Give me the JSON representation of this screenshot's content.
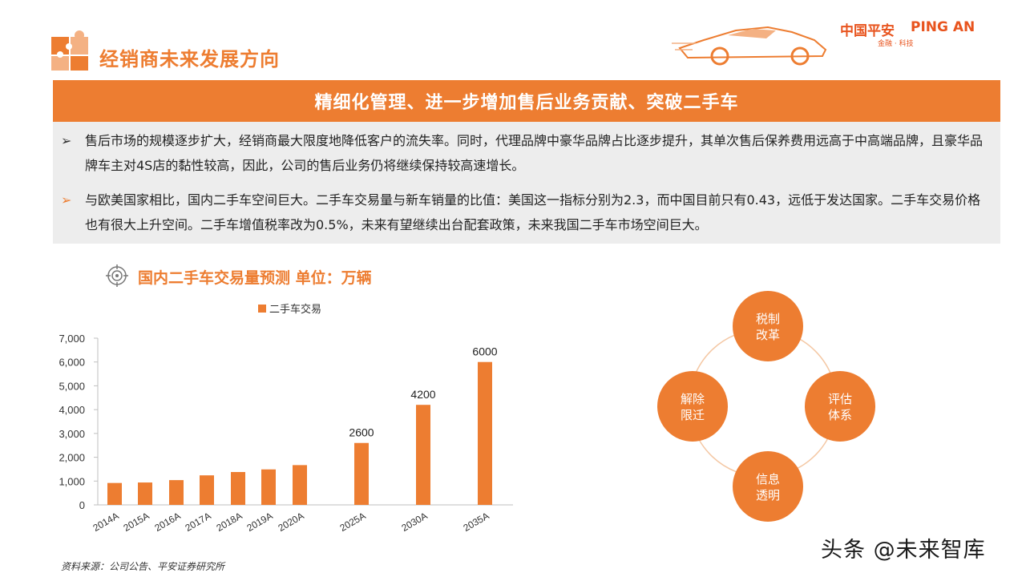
{
  "header": {
    "title": "经销商未来发展方向",
    "logo_cn": "中国平安",
    "logo_en": "PING AN",
    "tagline": "金融 · 科技"
  },
  "banner": {
    "text": "精细化管理、进一步增加售后业务贡献、突破二手车"
  },
  "bullets": [
    {
      "marker": "➢",
      "text": "售后市场的规模逐步扩大，经销商最大限度地降低客户的流失率。同时，代理品牌中豪华品牌占比逐步提升，其单次售后保养费用远高于中高端品牌，且豪华品牌车主对4S店的黏性较高，因此，公司的售后业务仍将继续保持较高速增长。"
    },
    {
      "marker": "➢",
      "text": "与欧美国家相比，国内二手车空间巨大。二手车交易量与新车销量的比值：美国这一指标分别为2.3，而中国目前只有0.43，远低于发达国家。二手车交易价格也有很大上升空间。二手车增值税率改为0.5%，未来有望继续出台配套政策，未来我国二手车市场空间巨大。"
    }
  ],
  "chart_heading": "国内二手车交易量预测 单位：万辆",
  "chart_data": {
    "type": "bar",
    "categories": [
      "2014A",
      "2015A",
      "2016A",
      "2017A",
      "2018A",
      "2019A",
      "2020A",
      "2025A",
      "2030A",
      "2035A"
    ],
    "series": [
      {
        "name": "二手车交易",
        "values": [
          920,
          940,
          1040,
          1240,
          1380,
          1490,
          1670,
          2600,
          4200,
          6000
        ],
        "data_labels": [
          "",
          "",
          "",
          "",
          "",
          "",
          "",
          "2600",
          "4200",
          "6000"
        ]
      }
    ],
    "ylim": [
      0,
      7000
    ],
    "yticks": [
      "0",
      "1,000",
      "2,000",
      "3,000",
      "4,000",
      "5,000",
      "6,000",
      "7,000"
    ],
    "ytick_values": [
      0,
      1000,
      2000,
      3000,
      4000,
      5000,
      6000,
      7000
    ],
    "legend_position": "top",
    "bar_color": "#ED7D31"
  },
  "cycle": {
    "items": [
      "税制\n改革",
      "评估\n体系",
      "信息\n透明",
      "解除\n限迁"
    ],
    "color": "#ED7D31"
  },
  "source_note": "资料来源：公司公告、平安证券研究所",
  "watermark": "头条 @未来智库"
}
